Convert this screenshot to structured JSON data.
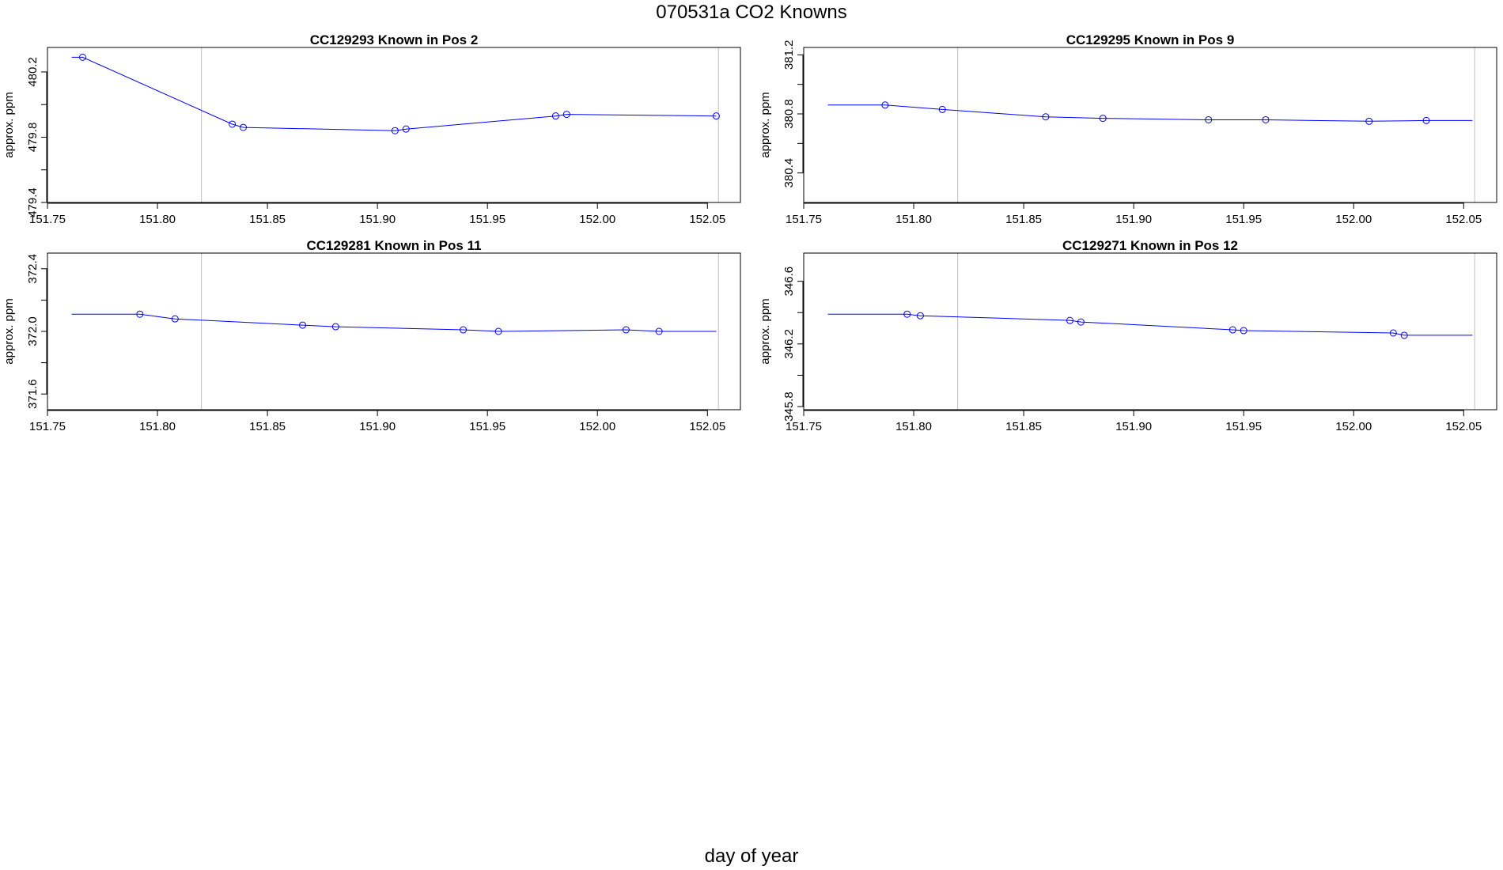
{
  "figure": {
    "title": "070531a   CO2 Knowns",
    "xlabel": "day of year"
  },
  "colors": {
    "series": "#0000ff",
    "reference_line": "#bebebe",
    "axis": "#000000"
  },
  "chart_data": [
    {
      "type": "line",
      "title": "CC129293    Known in Pos 2",
      "ylabel": "approx. ppm",
      "xlim": [
        151.75,
        152.065
      ],
      "ylim": [
        479.4,
        480.35
      ],
      "xticks": [
        151.75,
        151.8,
        151.85,
        151.9,
        151.95,
        152.0,
        152.05
      ],
      "xtick_labels": [
        "151.75",
        "151.80",
        "151.85",
        "151.90",
        "151.95",
        "152.00",
        "152.05"
      ],
      "yticks": [
        479.4,
        479.8,
        480.2
      ],
      "ytick_labels": [
        "479.4",
        "479.8",
        "480.2"
      ],
      "ref_lines_x": [
        151.82,
        152.055
      ],
      "line": [
        [
          151.761,
          480.29
        ],
        [
          151.766,
          480.29
        ],
        [
          151.834,
          479.88
        ],
        [
          151.839,
          479.86
        ],
        [
          151.908,
          479.84
        ],
        [
          151.913,
          479.85
        ],
        [
          151.981,
          479.93
        ],
        [
          151.986,
          479.94
        ],
        [
          152.054,
          479.93
        ]
      ],
      "points": [
        [
          151.766,
          480.29
        ],
        [
          151.834,
          479.88
        ],
        [
          151.839,
          479.86
        ],
        [
          151.908,
          479.84
        ],
        [
          151.913,
          479.85
        ],
        [
          151.981,
          479.93
        ],
        [
          151.986,
          479.94
        ],
        [
          152.054,
          479.93
        ]
      ]
    },
    {
      "type": "line",
      "title": "CC129295    Known in Pos 9",
      "ylabel": "approx. ppm",
      "xlim": [
        151.75,
        152.065
      ],
      "ylim": [
        380.2,
        381.25
      ],
      "xticks": [
        151.75,
        151.8,
        151.85,
        151.9,
        151.95,
        152.0,
        152.05
      ],
      "xtick_labels": [
        "151.75",
        "151.80",
        "151.85",
        "151.90",
        "151.95",
        "152.00",
        "152.05"
      ],
      "yticks": [
        380.4,
        380.8,
        381.2
      ],
      "ytick_labels": [
        "380.4",
        "380.8",
        "381.2"
      ],
      "ref_lines_x": [
        151.82,
        152.055
      ],
      "line": [
        [
          151.761,
          380.86
        ],
        [
          151.787,
          380.86
        ],
        [
          151.813,
          380.83
        ],
        [
          151.86,
          380.78
        ],
        [
          151.886,
          380.77
        ],
        [
          151.934,
          380.76
        ],
        [
          151.96,
          380.76
        ],
        [
          152.007,
          380.75
        ],
        [
          152.033,
          380.755
        ],
        [
          152.054,
          380.755
        ]
      ],
      "points": [
        [
          151.787,
          380.86
        ],
        [
          151.813,
          380.83
        ],
        [
          151.86,
          380.78
        ],
        [
          151.886,
          380.77
        ],
        [
          151.934,
          380.76
        ],
        [
          151.96,
          380.76
        ],
        [
          152.007,
          380.75
        ],
        [
          152.033,
          380.755
        ]
      ]
    },
    {
      "type": "line",
      "title": "CC129281    Known in Pos 11",
      "ylabel": "approx. ppm",
      "xlim": [
        151.75,
        152.065
      ],
      "ylim": [
        371.5,
        372.5
      ],
      "xticks": [
        151.75,
        151.8,
        151.85,
        151.9,
        151.95,
        152.0,
        152.05
      ],
      "xtick_labels": [
        "151.75",
        "151.80",
        "151.85",
        "151.90",
        "151.95",
        "152.00",
        "152.05"
      ],
      "yticks": [
        371.6,
        372.0,
        372.4
      ],
      "ytick_labels": [
        "371.6",
        "372.0",
        "372.4"
      ],
      "ref_lines_x": [
        151.82,
        152.055
      ],
      "line": [
        [
          151.761,
          372.11
        ],
        [
          151.792,
          372.11
        ],
        [
          151.808,
          372.08
        ],
        [
          151.866,
          372.04
        ],
        [
          151.881,
          372.03
        ],
        [
          151.939,
          372.01
        ],
        [
          151.955,
          372.0
        ],
        [
          152.013,
          372.01
        ],
        [
          152.028,
          372.0
        ],
        [
          152.054,
          372.0
        ]
      ],
      "points": [
        [
          151.792,
          372.11
        ],
        [
          151.808,
          372.08
        ],
        [
          151.866,
          372.04
        ],
        [
          151.881,
          372.03
        ],
        [
          151.939,
          372.01
        ],
        [
          151.955,
          372.0
        ],
        [
          152.013,
          372.01
        ],
        [
          152.028,
          372.0
        ]
      ]
    },
    {
      "type": "line",
      "title": "CC129271    Known in Pos 12",
      "ylabel": "approx. ppm",
      "xlim": [
        151.75,
        152.065
      ],
      "ylim": [
        345.78,
        346.78
      ],
      "xticks": [
        151.75,
        151.8,
        151.85,
        151.9,
        151.95,
        152.0,
        152.05
      ],
      "xtick_labels": [
        "151.75",
        "151.80",
        "151.85",
        "151.90",
        "151.95",
        "152.00",
        "152.05"
      ],
      "yticks": [
        345.8,
        346.2,
        346.6
      ],
      "ytick_labels": [
        "345.8",
        "346.2",
        "346.6"
      ],
      "ref_lines_x": [
        151.82,
        152.055
      ],
      "line": [
        [
          151.761,
          346.39
        ],
        [
          151.797,
          346.39
        ],
        [
          151.803,
          346.38
        ],
        [
          151.871,
          346.35
        ],
        [
          151.876,
          346.34
        ],
        [
          151.945,
          346.29
        ],
        [
          151.95,
          346.285
        ],
        [
          152.018,
          346.27
        ],
        [
          152.023,
          346.255
        ],
        [
          152.054,
          346.255
        ]
      ],
      "points": [
        [
          151.797,
          346.39
        ],
        [
          151.803,
          346.38
        ],
        [
          151.871,
          346.35
        ],
        [
          151.876,
          346.34
        ],
        [
          151.945,
          346.29
        ],
        [
          151.95,
          346.285
        ],
        [
          152.018,
          346.27
        ],
        [
          152.023,
          346.255
        ]
      ]
    }
  ]
}
